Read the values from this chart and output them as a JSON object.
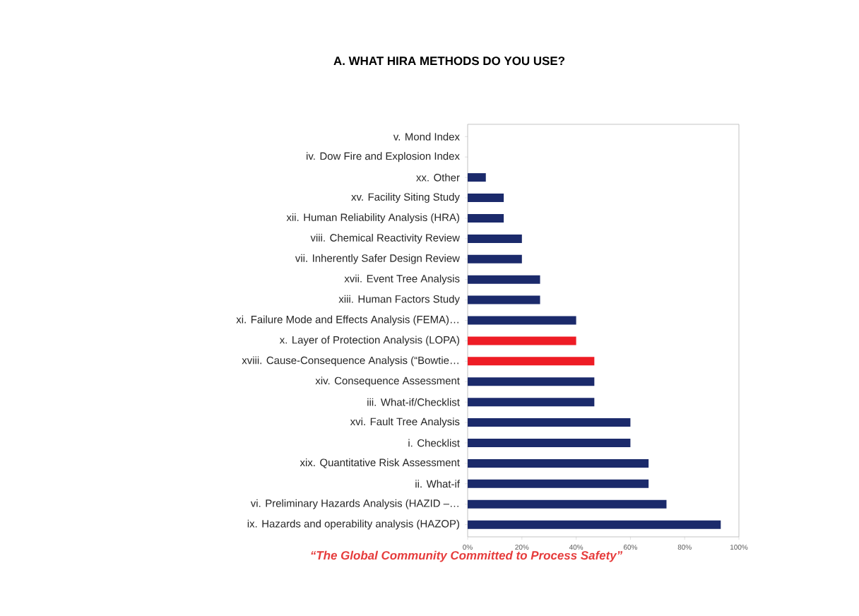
{
  "chart_data": {
    "type": "bar",
    "orientation": "horizontal",
    "title": "A. WHAT HIRA METHODS DO YOU USE?",
    "categories": [
      "v. Mond Index",
      "iv. Dow Fire and Explosion Index",
      "xx. Other",
      "xv. Facility Siting Study",
      "xii. Human Reliability Analysis (HRA)",
      "viii. Chemical Reactivity Review",
      "vii. Inherently Safer Design Review",
      "xvii. Event Tree Analysis",
      "xiii. Human Factors Study",
      "xi. Failure Mode and Effects Analysis (FEMA)…",
      "x. Layer of Protection Analysis (LOPA)",
      "xviii. Cause-Consequence Analysis (“Bowtie…",
      "xiv. Consequence Assessment",
      "iii. What-if/Checklist",
      "xvi. Fault Tree Analysis",
      "i. Checklist",
      "xix. Quantitative Risk Assessment",
      "ii. What-if",
      "vi. Preliminary Hazards Analysis (HAZID –…",
      "ix. Hazards and operability analysis (HAZOP)"
    ],
    "values": [
      0,
      0,
      6.7,
      13.3,
      13.3,
      20,
      20,
      26.7,
      26.7,
      40,
      40,
      46.7,
      46.7,
      46.7,
      60,
      60,
      66.7,
      66.7,
      73.3,
      93.3
    ],
    "colors": [
      "#1b2a6b",
      "#1b2a6b",
      "#1b2a6b",
      "#1b2a6b",
      "#1b2a6b",
      "#1b2a6b",
      "#1b2a6b",
      "#1b2a6b",
      "#1b2a6b",
      "#1b2a6b",
      "#ee1c25",
      "#ee1c25",
      "#1b2a6b",
      "#1b2a6b",
      "#1b2a6b",
      "#1b2a6b",
      "#1b2a6b",
      "#1b2a6b",
      "#1b2a6b",
      "#1b2a6b"
    ],
    "xlim": [
      0,
      100
    ],
    "xticks": [
      {
        "value": 0,
        "label": "0%"
      },
      {
        "value": 20,
        "label": "20%"
      },
      {
        "value": 40,
        "label": "40%"
      },
      {
        "value": 60,
        "label": "60%"
      },
      {
        "value": 80,
        "label": "80%"
      },
      {
        "value": 100,
        "label": "100%"
      }
    ],
    "annotations": [
      "“The Global Community Committed to Process Safety”"
    ],
    "grid": false
  }
}
